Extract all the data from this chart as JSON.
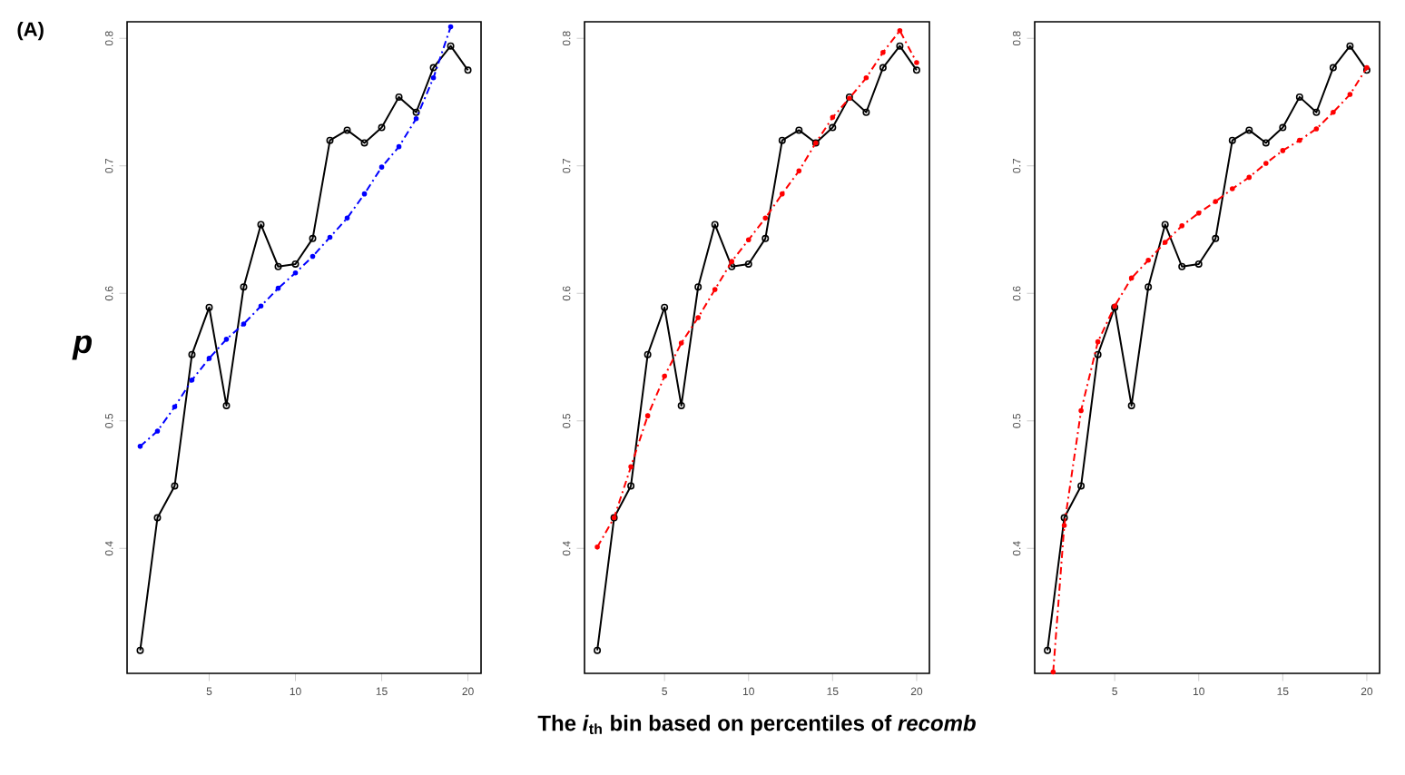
{
  "chart_data": [
    {
      "type": "line",
      "x": [
        1,
        2,
        3,
        4,
        5,
        6,
        7,
        8,
        9,
        10,
        11,
        12,
        13,
        14,
        15,
        16,
        17,
        18,
        19,
        20
      ],
      "xlim": [
        0.24,
        20.76
      ],
      "ylim": [
        0.302,
        0.813
      ],
      "xticks": [
        5,
        10,
        15,
        20
      ],
      "yticks": [
        0.4,
        0.5,
        0.6,
        0.7,
        0.8
      ],
      "ylabel": "*p*",
      "annotations": [
        "(A)"
      ],
      "series": [
        {
          "color": "#000000",
          "marker": "circle",
          "line_style": "solid",
          "values": [
            0.32,
            0.424,
            0.449,
            0.552,
            0.589,
            0.512,
            0.605,
            0.654,
            0.621,
            0.623,
            0.643,
            0.72,
            0.728,
            0.718,
            0.73,
            0.754,
            0.742,
            0.777,
            0.794,
            0.775
          ]
        },
        {
          "color": "#0000ff",
          "marker": "circle",
          "line_style": "dashed",
          "values": [
            0.48,
            0.492,
            0.511,
            0.532,
            0.549,
            0.564,
            0.576,
            0.59,
            0.604,
            0.616,
            0.629,
            0.644,
            0.659,
            0.678,
            0.699,
            0.715,
            0.737,
            0.769,
            0.809,
            null
          ]
        }
      ]
    },
    {
      "type": "line",
      "x": [
        1,
        2,
        3,
        4,
        5,
        6,
        7,
        8,
        9,
        10,
        11,
        12,
        13,
        14,
        15,
        16,
        17,
        18,
        19,
        20
      ],
      "xlim": [
        0.24,
        20.76
      ],
      "ylim": [
        0.302,
        0.813
      ],
      "xticks": [
        5,
        10,
        15,
        20
      ],
      "yticks": [
        0.4,
        0.5,
        0.6,
        0.7,
        0.8
      ],
      "xlabel": "The *i*$_{th}$ bin based on percentiles of *recomb*",
      "series": [
        {
          "color": "#000000",
          "marker": "circle",
          "line_style": "solid",
          "values": [
            0.32,
            0.424,
            0.449,
            0.552,
            0.589,
            0.512,
            0.605,
            0.654,
            0.621,
            0.623,
            0.643,
            0.72,
            0.728,
            0.718,
            0.73,
            0.754,
            0.742,
            0.777,
            0.794,
            0.775
          ]
        },
        {
          "color": "#ff0000",
          "marker": "circle",
          "line_style": "dashed",
          "values": [
            0.401,
            0.424,
            0.464,
            0.504,
            0.535,
            0.561,
            0.581,
            0.603,
            0.625,
            0.642,
            0.659,
            0.678,
            0.696,
            0.718,
            0.738,
            0.753,
            0.769,
            0.789,
            0.806,
            0.781
          ]
        }
      ]
    },
    {
      "type": "line",
      "x": [
        1,
        2,
        3,
        4,
        5,
        6,
        7,
        8,
        9,
        10,
        11,
        12,
        13,
        14,
        15,
        16,
        17,
        18,
        19,
        20
      ],
      "xlim": [
        0.24,
        20.76
      ],
      "ylim": [
        0.302,
        0.813
      ],
      "xticks": [
        5,
        10,
        15,
        20
      ],
      "yticks": [
        0.4,
        0.5,
        0.6,
        0.7,
        0.8
      ],
      "series": [
        {
          "color": "#000000",
          "marker": "circle",
          "line_style": "solid",
          "values": [
            0.32,
            0.424,
            0.449,
            0.552,
            0.589,
            0.512,
            0.605,
            0.654,
            0.621,
            0.623,
            0.643,
            0.72,
            0.728,
            0.718,
            0.73,
            0.754,
            0.742,
            0.777,
            0.794,
            0.775
          ]
        },
        {
          "color": "#ff0000",
          "marker": "circle",
          "line_style": "dashed",
          "x": [
            1.34,
            2,
            3,
            4,
            5,
            6,
            7,
            8,
            9,
            10,
            11,
            12,
            13,
            14,
            15,
            16,
            17,
            18,
            19,
            20
          ],
          "values": [
            0.303,
            0.418,
            0.508,
            0.562,
            0.59,
            0.612,
            0.626,
            0.64,
            0.653,
            0.663,
            0.672,
            0.682,
            0.691,
            0.702,
            0.712,
            0.72,
            0.729,
            0.742,
            0.756,
            0.777
          ]
        }
      ]
    }
  ]
}
